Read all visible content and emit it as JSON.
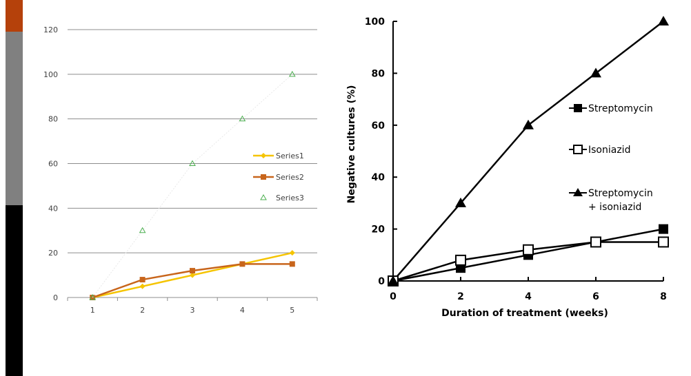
{
  "strip": {
    "colors": [
      "#b5410b",
      "#808080",
      "#000000"
    ]
  },
  "chart_data": [
    {
      "type": "line",
      "title": "",
      "xlabel": "",
      "ylabel": "",
      "categories": [
        "1",
        "2",
        "3",
        "4",
        "5"
      ],
      "ylim": [
        0,
        120
      ],
      "yticks": [
        0,
        20,
        40,
        60,
        80,
        100,
        120
      ],
      "grid": true,
      "legend_position": "right",
      "series": [
        {
          "name": "Series1",
          "values": [
            0,
            5,
            10,
            15,
            20
          ],
          "color": "#f5c400",
          "marker": "diamond"
        },
        {
          "name": "Series2",
          "values": [
            0,
            8,
            12,
            15,
            15
          ],
          "color": "#c8651b",
          "marker": "square"
        },
        {
          "name": "Series3",
          "values": [
            0,
            30,
            60,
            80,
            100
          ],
          "color": "#4caf50",
          "marker": "triangle-open"
        }
      ]
    },
    {
      "type": "line",
      "title": "",
      "xlabel": "Duration of treatment (weeks)",
      "ylabel": "Negative cultures (%)",
      "x": [
        0,
        2,
        4,
        6,
        8
      ],
      "xlim": [
        0,
        8
      ],
      "ylim": [
        0,
        100
      ],
      "xticks": [
        0,
        2,
        4,
        6,
        8
      ],
      "yticks": [
        0,
        20,
        40,
        60,
        80,
        100
      ],
      "grid": false,
      "legend_position": "right",
      "series": [
        {
          "name": "Streptomycin",
          "values": [
            0,
            5,
            10,
            15,
            20
          ],
          "marker": "square-filled"
        },
        {
          "name": "Isoniazid",
          "values": [
            0,
            8,
            12,
            15,
            15
          ],
          "marker": "square-open"
        },
        {
          "name": "Streptomycin\n+ isoniazid",
          "label_lines": [
            "Streptomycin",
            "+ isoniazid"
          ],
          "values": [
            0,
            30,
            60,
            80,
            100
          ],
          "marker": "triangle-filled"
        }
      ]
    }
  ]
}
